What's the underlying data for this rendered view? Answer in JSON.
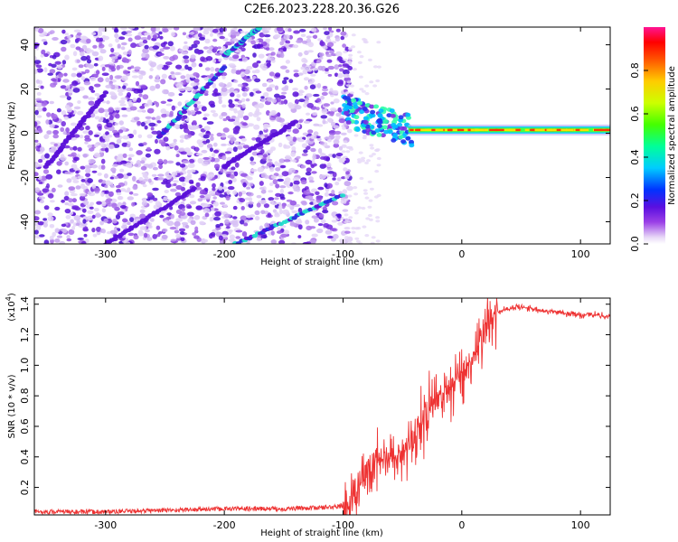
{
  "title": "C2E6.2023.228.20.36.G26",
  "chart_data": [
    {
      "type": "heatmap",
      "xlabel": "Height of straight line (km)",
      "ylabel": "Frequency (Hz)",
      "xlim": [
        -360,
        125
      ],
      "ylim": [
        -50,
        48
      ],
      "xticks": [
        -300,
        -200,
        -100,
        0,
        100
      ],
      "yticks": [
        -40,
        -20,
        0,
        20,
        40
      ],
      "colorbar": {
        "label": "Normalized spectral amplitude",
        "range": [
          0,
          1
        ],
        "ticks": [
          "0.0",
          "0.2",
          "0.4",
          "0.6",
          "0.8"
        ],
        "colors": [
          "#e6d6f7",
          "#9b40e6",
          "#5a0fe0",
          "#0033ff",
          "#00ccff",
          "#00ff66",
          "#66ff00",
          "#ffee00",
          "#ff6600",
          "#ff0000",
          "#ff1493"
        ]
      },
      "features": {
        "noise_region_x": [
          -360,
          -100
        ],
        "diagonal_streaks": [
          {
            "x": [
              -200,
              -170
            ],
            "y": [
              35,
              48
            ]
          },
          {
            "x": [
              -255,
              -200
            ],
            "y": [
              -2,
              30
            ]
          },
          {
            "x": [
              -190,
              -100
            ],
            "y": [
              -50,
              -28
            ]
          },
          {
            "x": [
              -300,
              -225
            ],
            "y": [
              -50,
              -25
            ]
          },
          {
            "x": [
              -350,
              -300
            ],
            "y": [
              -15,
              18
            ]
          },
          {
            "x": [
              -200,
              -140
            ],
            "y": [
              -15,
              5
            ]
          }
        ],
        "carrier": {
          "x": [
            -100,
            125
          ],
          "y_start": 10,
          "y_end": 1.5
        }
      }
    },
    {
      "type": "line",
      "xlabel": "Height of straight line (km)",
      "ylabel": "SNR (10 * v/v)",
      "multiplier": "(x10",
      "multiplier_exp": "4",
      "multiplier_close": ")",
      "xlim": [
        -360,
        125
      ],
      "ylim": [
        0.02,
        1.44
      ],
      "xticks": [
        -300,
        -200,
        -100,
        0,
        100
      ],
      "yticks": [
        "0.2",
        "0.4",
        "0.6",
        "0.8",
        "1.0",
        "1.2",
        "1.4"
      ],
      "series": [
        {
          "color": "#ee3333",
          "x": [
            -360,
            -300,
            -250,
            -200,
            -150,
            -110,
            -100,
            -90,
            -80,
            -70,
            -60,
            -50,
            -40,
            -30,
            -20,
            -10,
            0,
            10,
            20,
            30,
            40,
            50,
            60,
            70,
            80,
            90,
            100,
            110,
            125
          ],
          "y": [
            0.04,
            0.04,
            0.05,
            0.06,
            0.06,
            0.07,
            0.08,
            0.12,
            0.32,
            0.38,
            0.4,
            0.42,
            0.55,
            0.68,
            0.8,
            0.85,
            0.95,
            1.05,
            1.28,
            1.35,
            1.37,
            1.38,
            1.37,
            1.36,
            1.35,
            1.34,
            1.33,
            1.33,
            1.32
          ]
        }
      ]
    }
  ]
}
